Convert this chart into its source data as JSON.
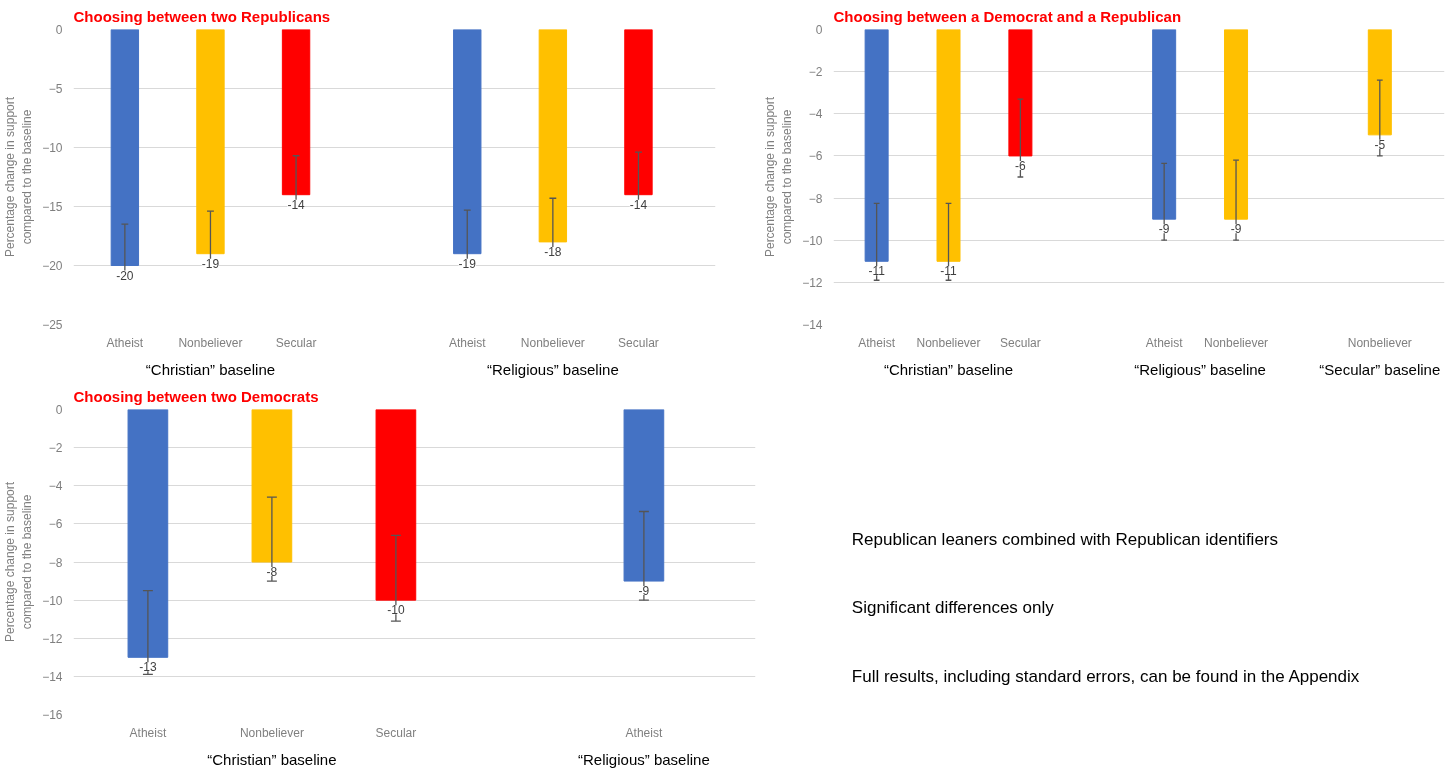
{
  "chart_data": [
    {
      "type": "bar",
      "title": "Choosing between two Republicans",
      "ylabel": "Percentage change in support compared to the baseline",
      "categories": [
        "Atheist",
        "Nonbeliever",
        "Secular",
        null,
        "Atheist",
        "Nonbeliever",
        "Secular"
      ],
      "values": [
        -20,
        -19,
        -14,
        null,
        -19,
        -18,
        -14
      ],
      "colors": [
        "#4472c4",
        "#ffc000",
        "#ff0000",
        null,
        "#4472c4",
        "#ffc000",
        "#ff0000"
      ],
      "errors": [
        [
          -21,
          -16.5
        ],
        [
          -20,
          -15.4
        ],
        [
          -15,
          -10.7
        ],
        null,
        [
          -20,
          -15.3
        ],
        [
          -19,
          -14.3
        ],
        [
          -15,
          -10.4
        ]
      ],
      "ylim": [
        -25,
        0
      ],
      "yticks": [
        0,
        -5,
        -10,
        -15,
        -20,
        -25
      ],
      "grid": "y",
      "data_labels": true,
      "annotations": [
        "“Christian” baseline",
        "“Religious” baseline"
      ]
    },
    {
      "type": "bar",
      "title": "Choosing between a Democrat and a Republican",
      "ylabel": "Percentage change in support compared to the baseline",
      "categories": [
        "Atheist",
        "Nonbeliever",
        "Secular",
        null,
        "Atheist",
        "Nonbeliever",
        null,
        "Nonbeliever"
      ],
      "values": [
        -11,
        -11,
        -6,
        null,
        -9,
        -9,
        null,
        -5
      ],
      "colors": [
        "#4472c4",
        "#ffc000",
        "#ff0000",
        null,
        "#4472c4",
        "#ffc000",
        null,
        "#ffc000"
      ],
      "errors": [
        [
          -11.9,
          -8.25
        ],
        [
          -11.9,
          -8.25
        ],
        [
          -7,
          -3.3
        ],
        null,
        [
          -10,
          -6.35
        ],
        [
          -10,
          -6.2
        ],
        null,
        [
          -6,
          -2.4
        ]
      ],
      "ylim": [
        -14,
        0
      ],
      "yticks": [
        0,
        -2,
        -4,
        -6,
        -8,
        -10,
        -12,
        -14
      ],
      "grid": "y",
      "data_labels": true,
      "annotations": [
        "“Christian” baseline",
        "“Religious” baseline",
        "“Secular” baseline"
      ]
    },
    {
      "type": "bar",
      "title": "Choosing between two Democrats",
      "ylabel": "Percentage change in support compared to the baseline",
      "categories": [
        "Atheist",
        "Nonbeliever",
        "Secular",
        null,
        "Atheist"
      ],
      "values": [
        -13,
        -8,
        -10,
        null,
        -9
      ],
      "colors": [
        "#4472c4",
        "#ffc000",
        "#ff0000",
        null,
        "#4472c4"
      ],
      "errors": [
        [
          -13.9,
          -9.5
        ],
        [
          -9,
          -4.6
        ],
        [
          -11.1,
          -6.6
        ],
        null,
        [
          -10,
          -5.35
        ]
      ],
      "ylim": [
        -16,
        0
      ],
      "yticks": [
        0,
        -2,
        -4,
        -6,
        -8,
        -10,
        -12,
        -14,
        -16
      ],
      "grid": "y",
      "data_labels": true,
      "annotations": [
        "“Christian” baseline",
        "“Religious” baseline"
      ]
    },
    {
      "type": "other",
      "annotations": [
        "Republican leaners combined with Republican identifiers",
        "Significant differences only",
        "Full results, including standard errors, can be found in the Appendix"
      ]
    }
  ]
}
